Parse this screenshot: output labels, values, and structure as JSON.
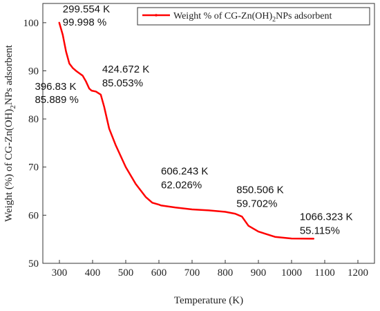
{
  "chart_data": {
    "type": "line",
    "title": "",
    "xlabel": "Temperature (K)",
    "ylabel": {
      "prefix": "Weight (%) of CG-Zn(OH)",
      "subscript": "2",
      "suffix": "NPs adsorbent"
    },
    "xlim": [
      250,
      1250
    ],
    "ylim": [
      50,
      104
    ],
    "x_ticks": [
      300,
      400,
      500,
      600,
      700,
      800,
      900,
      1000,
      1100,
      1200
    ],
    "y_ticks": [
      50,
      60,
      70,
      80,
      90,
      100
    ],
    "grid": false,
    "legend_position": "top-right",
    "series": [
      {
        "name": {
          "prefix": "Weight % of CG-Zn(OH)",
          "subscript": "2",
          "suffix": "NPs adsorbent"
        },
        "color": "#ff0000",
        "x": [
          299.554,
          310,
          320,
          330,
          340,
          350,
          360,
          370,
          380,
          390,
          396.83,
          410,
          424.672,
          435,
          450,
          470,
          500,
          530,
          560,
          580,
          600,
          606.243,
          650,
          700,
          750,
          800,
          830,
          850.506,
          870,
          900,
          950,
          1000,
          1066.323
        ],
        "y": [
          99.998,
          97.5,
          94.0,
          91.5,
          90.6,
          90.0,
          89.5,
          89.0,
          87.8,
          86.3,
          85.889,
          85.7,
          85.053,
          82.5,
          78.0,
          74.5,
          70.0,
          66.5,
          63.8,
          62.6,
          62.2,
          62.026,
          61.6,
          61.2,
          61.0,
          60.7,
          60.3,
          59.702,
          57.8,
          56.6,
          55.5,
          55.15,
          55.115
        ]
      }
    ],
    "annotations": [
      {
        "x": 299.554,
        "y": 99.998,
        "temp": "299.554 K",
        "weight": "99.998 %"
      },
      {
        "x": 396.83,
        "y": 85.889,
        "temp": "396.83 K",
        "weight": "85.889 %"
      },
      {
        "x": 424.672,
        "y": 85.053,
        "temp": "424.672 K",
        "weight": "85.053%"
      },
      {
        "x": 606.243,
        "y": 62.026,
        "temp": "606.243 K",
        "weight": "62.026%"
      },
      {
        "x": 850.506,
        "y": 59.702,
        "temp": "850.506 K",
        "weight": "59.702%"
      },
      {
        "x": 1066.323,
        "y": 55.115,
        "temp": "1066.323 K",
        "weight": "55.115%"
      }
    ]
  }
}
